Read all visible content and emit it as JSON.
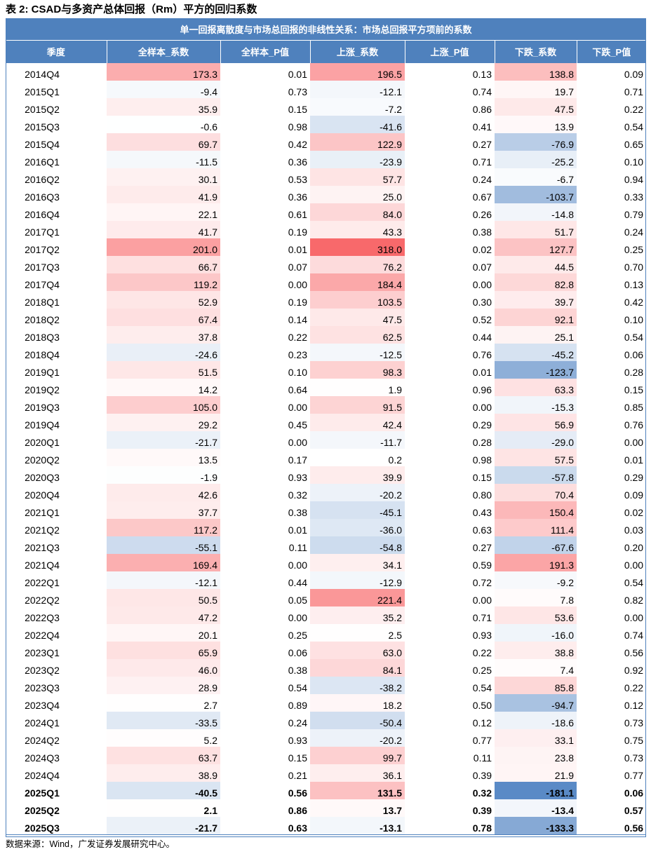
{
  "caption": "表 2:  CSAD与多资产总体回报（Rm）平方的回归系数",
  "table": {
    "group_header": "单一回报离散度与市场总回报的非线性关系：市场总回报平方项前的系数",
    "columns": [
      "季度",
      "全样本_系数",
      "全样本_P值",
      "上涨_系数",
      "上涨_P值",
      "下跌_系数",
      "下跌_P值"
    ],
    "rows": [
      [
        "2014Q4",
        "173.3",
        "0.01",
        "196.5",
        "0.13",
        "138.8",
        "0.09"
      ],
      [
        "2015Q1",
        "-9.4",
        "0.73",
        "-12.1",
        "0.74",
        "19.7",
        "0.71"
      ],
      [
        "2015Q2",
        "35.9",
        "0.15",
        "-7.2",
        "0.86",
        "47.5",
        "0.22"
      ],
      [
        "2015Q3",
        "-0.6",
        "0.98",
        "-41.6",
        "0.41",
        "13.9",
        "0.54"
      ],
      [
        "2015Q4",
        "69.7",
        "0.42",
        "122.9",
        "0.27",
        "-76.9",
        "0.65"
      ],
      [
        "2016Q1",
        "-11.5",
        "0.36",
        "-23.9",
        "0.71",
        "-25.2",
        "0.10"
      ],
      [
        "2016Q2",
        "30.1",
        "0.53",
        "57.7",
        "0.24",
        "-6.7",
        "0.94"
      ],
      [
        "2016Q3",
        "41.9",
        "0.36",
        "25.0",
        "0.67",
        "-103.7",
        "0.33"
      ],
      [
        "2016Q4",
        "22.1",
        "0.61",
        "84.0",
        "0.26",
        "-14.8",
        "0.79"
      ],
      [
        "2017Q1",
        "41.7",
        "0.19",
        "43.3",
        "0.38",
        "51.7",
        "0.24"
      ],
      [
        "2017Q2",
        "201.0",
        "0.01",
        "318.0",
        "0.02",
        "127.7",
        "0.25"
      ],
      [
        "2017Q3",
        "66.7",
        "0.07",
        "76.2",
        "0.07",
        "44.5",
        "0.70"
      ],
      [
        "2017Q4",
        "119.2",
        "0.00",
        "184.4",
        "0.00",
        "82.8",
        "0.13"
      ],
      [
        "2018Q1",
        "52.9",
        "0.19",
        "103.5",
        "0.30",
        "39.7",
        "0.42"
      ],
      [
        "2018Q2",
        "67.4",
        "0.14",
        "47.5",
        "0.52",
        "92.1",
        "0.10"
      ],
      [
        "2018Q3",
        "37.8",
        "0.22",
        "62.5",
        "0.44",
        "25.1",
        "0.54"
      ],
      [
        "2018Q4",
        "-24.6",
        "0.23",
        "-12.5",
        "0.76",
        "-45.2",
        "0.06"
      ],
      [
        "2019Q1",
        "51.5",
        "0.10",
        "98.3",
        "0.01",
        "-123.7",
        "0.28"
      ],
      [
        "2019Q2",
        "14.2",
        "0.64",
        "1.9",
        "0.96",
        "63.3",
        "0.15"
      ],
      [
        "2019Q3",
        "105.0",
        "0.00",
        "91.5",
        "0.00",
        "-15.3",
        "0.85"
      ],
      [
        "2019Q4",
        "29.2",
        "0.45",
        "42.4",
        "0.29",
        "56.9",
        "0.76"
      ],
      [
        "2020Q1",
        "-21.7",
        "0.00",
        "-11.7",
        "0.28",
        "-29.0",
        "0.00"
      ],
      [
        "2020Q2",
        "13.5",
        "0.17",
        "0.2",
        "0.98",
        "57.5",
        "0.01"
      ],
      [
        "2020Q3",
        "-1.9",
        "0.93",
        "39.9",
        "0.15",
        "-57.8",
        "0.29"
      ],
      [
        "2020Q4",
        "42.6",
        "0.32",
        "-20.2",
        "0.80",
        "70.4",
        "0.09"
      ],
      [
        "2021Q1",
        "37.7",
        "0.38",
        "-45.1",
        "0.43",
        "150.4",
        "0.02"
      ],
      [
        "2021Q2",
        "117.2",
        "0.01",
        "-36.0",
        "0.63",
        "111.4",
        "0.03"
      ],
      [
        "2021Q3",
        "-55.1",
        "0.11",
        "-54.8",
        "0.27",
        "-67.6",
        "0.20"
      ],
      [
        "2021Q4",
        "169.4",
        "0.00",
        "34.1",
        "0.59",
        "191.3",
        "0.00"
      ],
      [
        "2022Q1",
        "-12.1",
        "0.44",
        "-12.9",
        "0.72",
        "-9.2",
        "0.54"
      ],
      [
        "2022Q2",
        "50.5",
        "0.05",
        "221.4",
        "0.00",
        "7.8",
        "0.82"
      ],
      [
        "2022Q3",
        "47.2",
        "0.00",
        "35.2",
        "0.71",
        "53.6",
        "0.00"
      ],
      [
        "2022Q4",
        "20.1",
        "0.25",
        "2.5",
        "0.93",
        "-16.0",
        "0.74"
      ],
      [
        "2023Q1",
        "65.9",
        "0.06",
        "63.0",
        "0.22",
        "38.8",
        "0.56"
      ],
      [
        "2023Q2",
        "46.0",
        "0.38",
        "84.1",
        "0.25",
        "7.4",
        "0.92"
      ],
      [
        "2023Q3",
        "28.9",
        "0.54",
        "-38.2",
        "0.54",
        "85.8",
        "0.22"
      ],
      [
        "2023Q4",
        "2.7",
        "0.89",
        "18.2",
        "0.50",
        "-94.7",
        "0.12"
      ],
      [
        "2024Q1",
        "-33.5",
        "0.24",
        "-50.4",
        "0.12",
        "-18.6",
        "0.73"
      ],
      [
        "2024Q2",
        "5.2",
        "0.93",
        "-20.2",
        "0.77",
        "33.1",
        "0.75"
      ],
      [
        "2024Q3",
        "63.7",
        "0.15",
        "99.7",
        "0.11",
        "23.8",
        "0.73"
      ],
      [
        "2024Q4",
        "38.9",
        "0.21",
        "36.1",
        "0.39",
        "21.9",
        "0.77"
      ],
      [
        "2025Q1",
        "-40.5",
        "0.56",
        "131.5",
        "0.32",
        "-181.1",
        "0.06"
      ],
      [
        "2025Q2",
        "2.1",
        "0.86",
        "13.7",
        "0.39",
        "-13.4",
        "0.57"
      ],
      [
        "2025Q3",
        "-21.7",
        "0.63",
        "-13.1",
        "0.78",
        "-133.3",
        "0.56"
      ]
    ],
    "bold_rows_from": "2025Q1"
  },
  "heatmap": {
    "positive_color": "#f8696b",
    "negative_color": "#5a8ac6",
    "neutral_color": "#ffffff",
    "max_value": 318.0,
    "min_value": -181.1
  },
  "source": "数据来源：Wind，广发证券发展研究中心。"
}
